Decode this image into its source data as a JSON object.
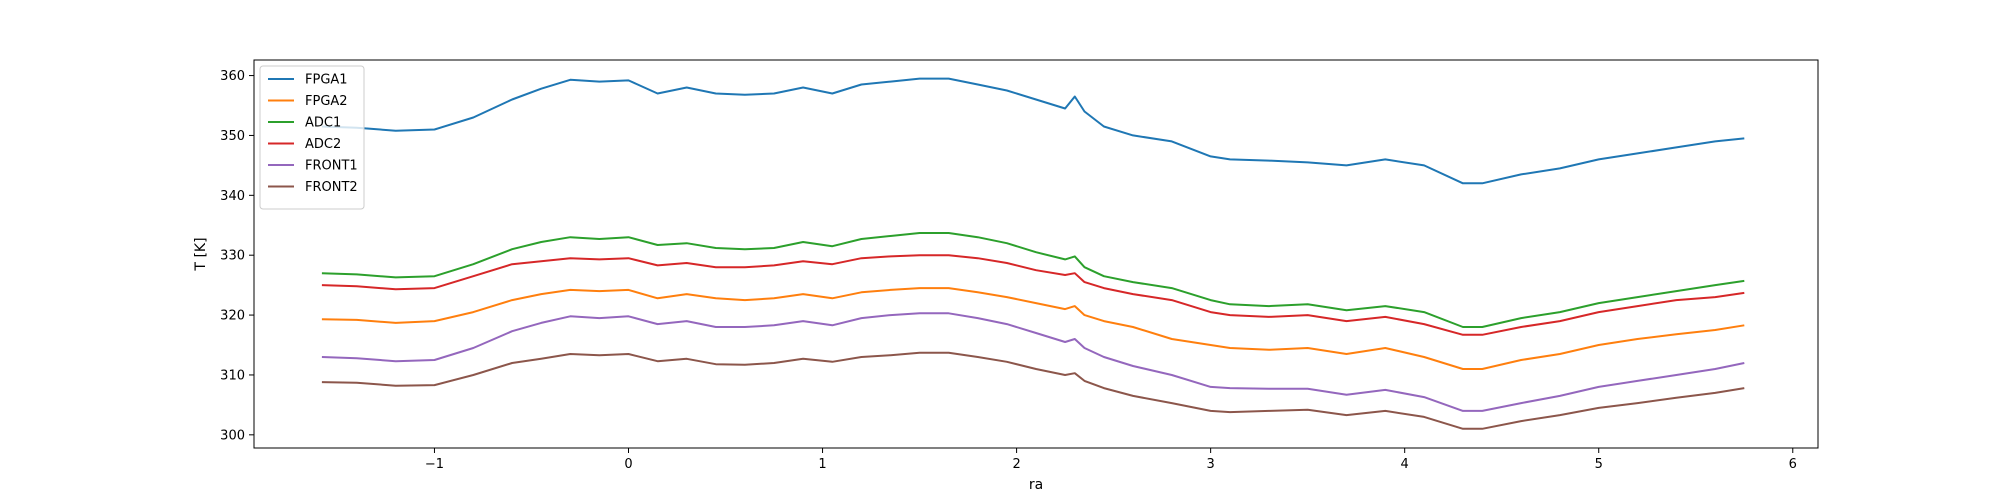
{
  "chart_data": {
    "type": "line",
    "title": "",
    "xlabel": "ra",
    "ylabel": "T [K]",
    "xlim": [
      -1.93,
      6.13
    ],
    "ylim": [
      297.8,
      362.6
    ],
    "xticks": [
      -1,
      0,
      1,
      2,
      3,
      4,
      5,
      6
    ],
    "xtick_labels": [
      "−1",
      "0",
      "1",
      "2",
      "3",
      "4",
      "5",
      "6"
    ],
    "yticks": [
      300,
      310,
      320,
      330,
      340,
      350,
      360
    ],
    "ytick_labels": [
      "300",
      "310",
      "320",
      "330",
      "340",
      "350",
      "360"
    ],
    "grid": false,
    "legend_position": "top-left",
    "x": [
      -1.58,
      -1.4,
      -1.2,
      -1.0,
      -0.8,
      -0.6,
      -0.45,
      -0.3,
      -0.15,
      0.0,
      0.15,
      0.3,
      0.45,
      0.6,
      0.75,
      0.9,
      1.05,
      1.2,
      1.35,
      1.5,
      1.65,
      1.8,
      1.95,
      2.1,
      2.25,
      2.3,
      2.35,
      2.45,
      2.6,
      2.8,
      3.0,
      3.1,
      3.3,
      3.5,
      3.7,
      3.9,
      4.1,
      4.3,
      4.4,
      4.6,
      4.8,
      5.0,
      5.2,
      5.4,
      5.6,
      5.75
    ],
    "series": [
      {
        "name": "FPGA1",
        "color": "#1f77b4",
        "values": [
          351.5,
          351.3,
          350.8,
          351.0,
          353.0,
          356.0,
          357.8,
          359.3,
          359.0,
          359.2,
          357.0,
          358.0,
          357.0,
          356.8,
          357.0,
          358.0,
          357.0,
          358.5,
          359.0,
          359.5,
          359.5,
          358.5,
          357.5,
          356.0,
          354.5,
          356.5,
          354.0,
          351.5,
          350.0,
          349.0,
          346.5,
          346.0,
          345.8,
          345.5,
          345.0,
          346.0,
          345.0,
          342.0,
          342.0,
          343.5,
          344.5,
          346.0,
          347.0,
          348.0,
          349.0,
          349.5
        ]
      },
      {
        "name": "FPGA2",
        "color": "#ff7f0e",
        "values": [
          319.3,
          319.2,
          318.7,
          319.0,
          320.5,
          322.5,
          323.5,
          324.2,
          324.0,
          324.2,
          322.8,
          323.5,
          322.8,
          322.5,
          322.8,
          323.5,
          322.8,
          323.8,
          324.2,
          324.5,
          324.5,
          323.8,
          323.0,
          322.0,
          321.0,
          321.5,
          320.0,
          319.0,
          318.0,
          316.0,
          315.0,
          314.5,
          314.2,
          314.5,
          313.5,
          314.5,
          313.0,
          311.0,
          311.0,
          312.5,
          313.5,
          315.0,
          316.0,
          316.8,
          317.5,
          318.3
        ]
      },
      {
        "name": "ADC1",
        "color": "#2ca02c",
        "values": [
          327.0,
          326.8,
          326.3,
          326.5,
          328.5,
          331.0,
          332.2,
          333.0,
          332.7,
          333.0,
          331.7,
          332.0,
          331.2,
          331.0,
          331.2,
          332.2,
          331.5,
          332.7,
          333.2,
          333.7,
          333.7,
          333.0,
          332.0,
          330.5,
          329.3,
          329.8,
          328.0,
          326.5,
          325.5,
          324.5,
          322.5,
          321.8,
          321.5,
          321.8,
          320.8,
          321.5,
          320.5,
          318.0,
          318.0,
          319.5,
          320.5,
          322.0,
          323.0,
          324.0,
          325.0,
          325.7
        ]
      },
      {
        "name": "ADC2",
        "color": "#d62728",
        "values": [
          325.0,
          324.8,
          324.3,
          324.5,
          326.5,
          328.5,
          329.0,
          329.5,
          329.3,
          329.5,
          328.3,
          328.7,
          328.0,
          328.0,
          328.3,
          329.0,
          328.5,
          329.5,
          329.8,
          330.0,
          330.0,
          329.5,
          328.7,
          327.5,
          326.7,
          327.0,
          325.5,
          324.5,
          323.5,
          322.5,
          320.5,
          320.0,
          319.7,
          320.0,
          319.0,
          319.7,
          318.5,
          316.7,
          316.7,
          318.0,
          319.0,
          320.5,
          321.5,
          322.5,
          323.0,
          323.7
        ]
      },
      {
        "name": "FRONT1",
        "color": "#9467bd",
        "values": [
          313.0,
          312.8,
          312.3,
          312.5,
          314.5,
          317.3,
          318.7,
          319.8,
          319.5,
          319.8,
          318.5,
          319.0,
          318.0,
          318.0,
          318.3,
          319.0,
          318.3,
          319.5,
          320.0,
          320.3,
          320.3,
          319.5,
          318.5,
          317.0,
          315.5,
          316.0,
          314.5,
          313.0,
          311.5,
          310.0,
          308.0,
          307.8,
          307.7,
          307.7,
          306.7,
          307.5,
          306.3,
          304.0,
          304.0,
          305.3,
          306.5,
          308.0,
          309.0,
          310.0,
          311.0,
          312.0
        ]
      },
      {
        "name": "FRONT2",
        "color": "#8c564b",
        "values": [
          308.8,
          308.7,
          308.2,
          308.3,
          310.0,
          312.0,
          312.7,
          313.5,
          313.3,
          313.5,
          312.3,
          312.7,
          311.8,
          311.7,
          312.0,
          312.7,
          312.2,
          313.0,
          313.3,
          313.7,
          313.7,
          313.0,
          312.2,
          311.0,
          310.0,
          310.3,
          309.0,
          307.8,
          306.5,
          305.3,
          304.0,
          303.8,
          304.0,
          304.2,
          303.3,
          304.0,
          303.0,
          301.0,
          301.0,
          302.3,
          303.3,
          304.5,
          305.3,
          306.2,
          307.0,
          307.8
        ]
      }
    ]
  }
}
